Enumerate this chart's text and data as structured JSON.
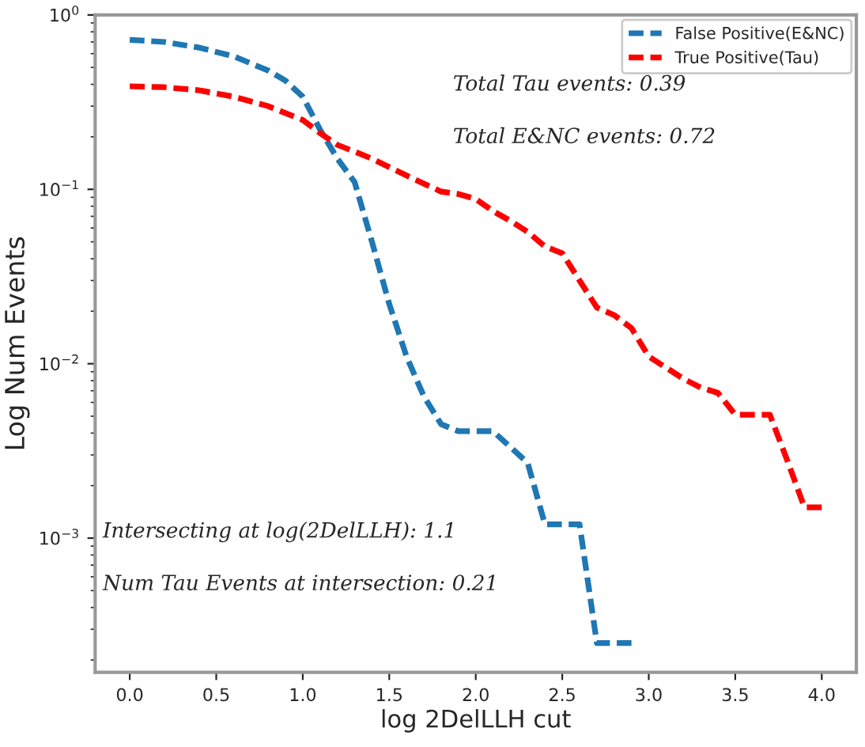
{
  "chart_data": {
    "type": "line",
    "xlabel": "log 2DelLLH cut",
    "ylabel": "Log Num Events",
    "log": "y",
    "legend": "top right",
    "line_style": "dashed",
    "marker": "none",
    "grid": false,
    "xlim": [
      -0.2,
      4.2
    ],
    "xticks": [
      {
        "value": 0,
        "label": "0.0"
      },
      {
        "value": 0.5,
        "label": "0.5"
      },
      {
        "value": 1,
        "label": "1.0"
      },
      {
        "value": 1.5,
        "label": "1.5"
      },
      {
        "value": 2,
        "label": "2.0"
      },
      {
        "value": 2.5,
        "label": "2.5"
      },
      {
        "value": 3,
        "label": "3.0"
      },
      {
        "value": 3.5,
        "label": "3.5"
      },
      {
        "value": 4,
        "label": "4.0"
      }
    ],
    "ylim": [
      0.00017,
      1.0
    ],
    "yticks": [
      {
        "value": 0.001,
        "label": "10$^{−3}$"
      },
      {
        "value": 0.01,
        "label": "10$^{−2}$"
      },
      {
        "value": 0.1,
        "label": "10$^{−1}$"
      },
      {
        "value": 1,
        "label": "10$^{0}$"
      }
    ],
    "series": [
      {
        "name": "False Positive(E&NC)",
        "color": "#1f77b4",
        "x": [
          0.0,
          0.2,
          0.4,
          0.6,
          0.8,
          0.9,
          1.0,
          1.1,
          1.2,
          1.3,
          1.4,
          1.5,
          1.6,
          1.7,
          1.8,
          1.9,
          2.1,
          2.3,
          2.4,
          2.6,
          2.7,
          2.9
        ],
        "values": [
          0.72,
          0.7,
          0.65,
          0.58,
          0.48,
          0.42,
          0.34,
          0.22,
          0.15,
          0.11,
          0.05,
          0.022,
          0.011,
          0.0065,
          0.0045,
          0.0041,
          0.0041,
          0.0027,
          0.0012,
          0.0012,
          0.00025,
          0.00025
        ]
      },
      {
        "name": "True Positive(Tau)",
        "color": "#ff0000",
        "x": [
          0.0,
          0.2,
          0.4,
          0.6,
          0.8,
          1.0,
          1.1,
          1.2,
          1.4,
          1.6,
          1.8,
          1.9,
          2.0,
          2.1,
          2.2,
          2.3,
          2.4,
          2.5,
          2.6,
          2.7,
          2.8,
          2.9,
          3.0,
          3.1,
          3.2,
          3.3,
          3.4,
          3.5,
          3.6,
          3.7,
          3.8,
          3.9,
          4.0
        ],
        "values": [
          0.39,
          0.385,
          0.37,
          0.34,
          0.3,
          0.25,
          0.21,
          0.18,
          0.15,
          0.12,
          0.097,
          0.094,
          0.088,
          0.075,
          0.066,
          0.057,
          0.047,
          0.043,
          0.03,
          0.021,
          0.019,
          0.016,
          0.011,
          0.0095,
          0.0082,
          0.0073,
          0.0068,
          0.0051,
          0.0051,
          0.0051,
          0.0028,
          0.0015,
          0.0015
        ]
      }
    ],
    "annotations": [
      "Total Tau events: 0.39",
      "Total E&NC events: 0.72",
      "Intersecting at log(2DelLLH): 1.1",
      "Num Tau Events at intersection: 0.21"
    ]
  }
}
